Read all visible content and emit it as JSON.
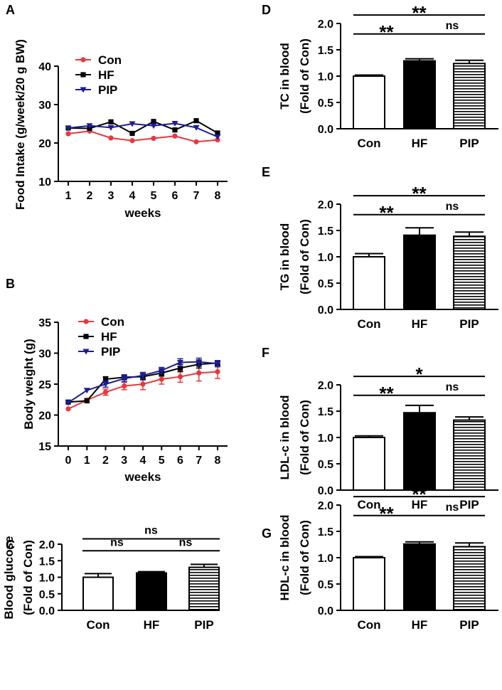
{
  "chart_data": [
    {
      "id": "A",
      "panel_label": "A",
      "type": "line",
      "ylabel": "Food Intake (g/week/20 g BW)",
      "xlabel": "weeks",
      "ylim": [
        10,
        40
      ],
      "yticks": [
        "10",
        "20",
        "30",
        "40"
      ],
      "x": [
        1,
        2,
        3,
        4,
        5,
        6,
        7,
        8
      ],
      "xticks": [
        "1",
        "2",
        "3",
        "4",
        "5",
        "6",
        "7",
        "8"
      ],
      "legend_position": "top-left",
      "series": [
        {
          "name": "Con",
          "color": "#e8383d",
          "marker": "circle",
          "values": [
            22.4,
            23.1,
            21.3,
            20.6,
            21.2,
            21.8,
            20.3,
            20.8
          ],
          "errors": [
            0,
            0,
            0,
            0,
            0,
            0,
            0,
            0
          ]
        },
        {
          "name": "HF",
          "color": "#000000",
          "marker": "square",
          "values": [
            23.9,
            23.8,
            25.5,
            22.5,
            25.6,
            23.4,
            25.8,
            22.6
          ],
          "errors": [
            0,
            0,
            0,
            0,
            0,
            0,
            0,
            0
          ]
        },
        {
          "name": "PIP",
          "color": "#1c1c9c",
          "marker": "triangle-down",
          "values": [
            23.9,
            24.5,
            24.0,
            25.0,
            24.5,
            25.1,
            24.0,
            21.6
          ],
          "errors": [
            0,
            0,
            0,
            0,
            0,
            0,
            0,
            0
          ]
        }
      ]
    },
    {
      "id": "B",
      "panel_label": "B",
      "type": "line",
      "ylabel": "Body weight (g)",
      "xlabel": "weeks",
      "ylim": [
        15,
        35
      ],
      "yticks": [
        "15",
        "20",
        "25",
        "30",
        "35"
      ],
      "x": [
        0,
        1,
        2,
        3,
        4,
        5,
        6,
        7,
        8
      ],
      "xticks": [
        "0",
        "1",
        "2",
        "3",
        "4",
        "5",
        "6",
        "7",
        "8"
      ],
      "legend_position": "top-left",
      "series": [
        {
          "name": "Con",
          "color": "#e8383d",
          "marker": "circle",
          "values": [
            21.0,
            22.4,
            23.7,
            24.7,
            25.0,
            25.8,
            26.2,
            26.8,
            27.0
          ],
          "errors": [
            0,
            0.3,
            0.5,
            0.6,
            0.9,
            0.8,
            0.9,
            1.3,
            1.1
          ]
        },
        {
          "name": "HF",
          "color": "#000000",
          "marker": "square",
          "values": [
            22.1,
            22.3,
            25.8,
            26.1,
            26.2,
            26.8,
            27.6,
            28.2,
            28.4
          ],
          "errors": [
            0,
            0,
            0.4,
            0.4,
            0.5,
            0.5,
            0.6,
            0.6,
            0.4
          ]
        },
        {
          "name": "PIP",
          "color": "#1c1c9c",
          "marker": "triangle-down",
          "values": [
            22.0,
            24.0,
            25.0,
            25.9,
            26.4,
            27.2,
            28.5,
            28.6,
            28.3
          ],
          "errors": [
            0,
            0,
            0.5,
            0.5,
            0.5,
            0.5,
            0.6,
            0.6,
            0.5
          ]
        }
      ]
    },
    {
      "id": "C",
      "panel_label": "C",
      "type": "bar",
      "ylabel": "Blood glucose (Fold of Con)",
      "ylabel_lines": [
        "Blood glucose",
        "(Fold of Con)"
      ],
      "categories": [
        "Con",
        "HF",
        "PIP"
      ],
      "fills": [
        "white",
        "black",
        "stripes"
      ],
      "values": [
        1.0,
        1.13,
        1.3
      ],
      "errors": [
        0.11,
        0.04,
        0.09
      ],
      "ylim": [
        0,
        2.0
      ],
      "yticks": [
        "0.0",
        "0.5",
        "1.0",
        "1.5",
        "2.0"
      ],
      "significance": [
        {
          "from": 0,
          "to": 1,
          "label": "ns"
        },
        {
          "from": 1,
          "to": 2,
          "label": "ns"
        },
        {
          "from": 0,
          "to": 2,
          "label": "ns"
        }
      ]
    },
    {
      "id": "D",
      "panel_label": "D",
      "type": "bar",
      "ylabel": "TC in blood (Fold of Con)",
      "ylabel_lines": [
        "TC in blood",
        "(Fold of Con)"
      ],
      "categories": [
        "Con",
        "HF",
        "PIP"
      ],
      "fills": [
        "white",
        "black",
        "stripes"
      ],
      "values": [
        1.0,
        1.29,
        1.24
      ],
      "errors": [
        0.02,
        0.04,
        0.06
      ],
      "ylim": [
        0,
        2.0
      ],
      "yticks": [
        "0.0",
        "0.5",
        "1.0",
        "1.5",
        "2.0"
      ],
      "significance": [
        {
          "from": 0,
          "to": 1,
          "label": "**"
        },
        {
          "from": 1,
          "to": 2,
          "label": "ns"
        },
        {
          "from": 0,
          "to": 2,
          "label": "**"
        }
      ]
    },
    {
      "id": "E",
      "panel_label": "E",
      "type": "bar",
      "ylabel": "TG in blood (Fold of Con)",
      "ylabel_lines": [
        "TG in blood",
        "(Fold of Con)"
      ],
      "categories": [
        "Con",
        "HF",
        "PIP"
      ],
      "fills": [
        "white",
        "black",
        "stripes"
      ],
      "values": [
        1.0,
        1.41,
        1.39
      ],
      "errors": [
        0.06,
        0.14,
        0.08
      ],
      "ylim": [
        0,
        2.0
      ],
      "yticks": [
        "0.0",
        "0.5",
        "1.0",
        "1.5",
        "2.0"
      ],
      "significance": [
        {
          "from": 0,
          "to": 1,
          "label": "**"
        },
        {
          "from": 1,
          "to": 2,
          "label": "ns"
        },
        {
          "from": 0,
          "to": 2,
          "label": "**"
        }
      ]
    },
    {
      "id": "F",
      "panel_label": "F",
      "type": "bar",
      "ylabel": "LDL-c in blood (Fold of Con)",
      "ylabel_lines": [
        "LDL-c in blood",
        "(Fold of Con)"
      ],
      "categories": [
        "Con",
        "HF",
        "PIP"
      ],
      "fills": [
        "white",
        "black",
        "stripes"
      ],
      "values": [
        1.0,
        1.47,
        1.33
      ],
      "errors": [
        0.03,
        0.14,
        0.06
      ],
      "ylim": [
        0,
        2.0
      ],
      "yticks": [
        "0.0",
        "0.5",
        "1.0",
        "1.5",
        "2.0"
      ],
      "significance": [
        {
          "from": 0,
          "to": 1,
          "label": "**"
        },
        {
          "from": 1,
          "to": 2,
          "label": "ns"
        },
        {
          "from": 0,
          "to": 2,
          "label": "*"
        }
      ]
    },
    {
      "id": "G",
      "panel_label": "G",
      "type": "bar",
      "ylabel": "HDL-c in blood (Fold of Con)",
      "ylabel_lines": [
        "HDL-c in blood",
        "(Fold of Con)"
      ],
      "categories": [
        "Con",
        "HF",
        "PIP"
      ],
      "fills": [
        "white",
        "black",
        "stripes"
      ],
      "values": [
        1.0,
        1.26,
        1.21
      ],
      "errors": [
        0.02,
        0.04,
        0.07
      ],
      "ylim": [
        0,
        2.0
      ],
      "yticks": [
        "0.0",
        "0.5",
        "1.0",
        "1.5",
        "2.0"
      ],
      "significance": [
        {
          "from": 0,
          "to": 1,
          "label": "**"
        },
        {
          "from": 1,
          "to": 2,
          "label": "ns"
        },
        {
          "from": 0,
          "to": 2,
          "label": "**"
        }
      ]
    }
  ]
}
